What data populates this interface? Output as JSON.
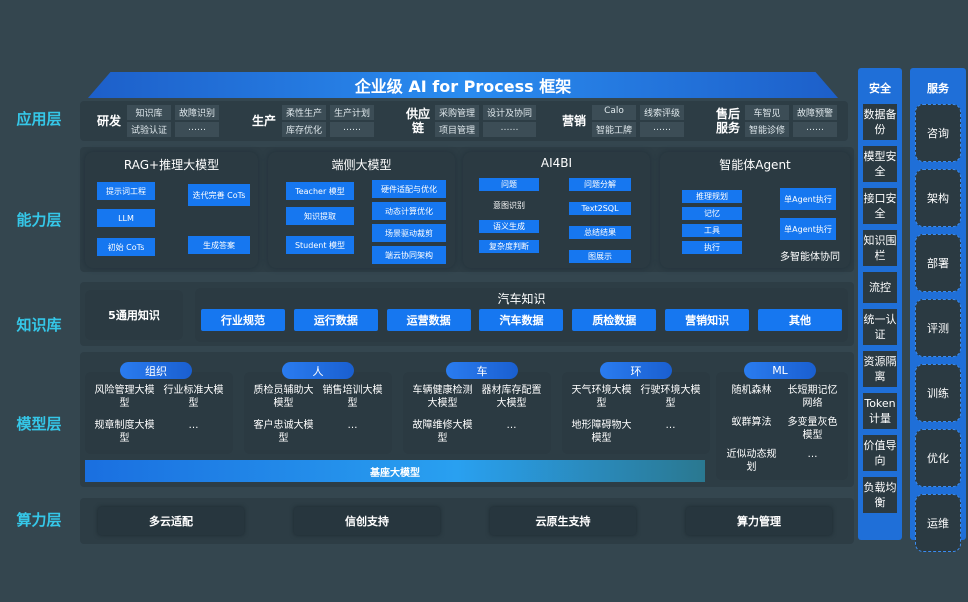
{
  "title": "企业级 AI for Process 框架",
  "layers": [
    "应用层",
    "能力层",
    "知识库",
    "模型层",
    "算力层"
  ],
  "app": [
    {
      "name": "研发",
      "items": [
        "知识库",
        "故障识别",
        "试验认证",
        "……"
      ]
    },
    {
      "name": "生产",
      "items": [
        "柔性生产",
        "生产计划",
        "库存优化",
        "……"
      ]
    },
    {
      "name": "供应链",
      "items": [
        "采购管理",
        "设计及协同",
        "项目管理",
        "……"
      ]
    },
    {
      "name": "营销",
      "items": [
        "Calo",
        "线索评级",
        "智能工牌",
        "……"
      ]
    },
    {
      "name": "售后服务",
      "items": [
        "车智见",
        "故障预警",
        "智能诊修",
        "……"
      ]
    }
  ],
  "capability": {
    "rag": {
      "title": "RAG+推理大模型",
      "left": [
        "提示词工程",
        "LLM",
        "初始 CoTs"
      ],
      "right": [
        "迭代完善 CoTs",
        "生成答案"
      ]
    },
    "edge": {
      "title": "端侧大模型",
      "left": [
        "Teacher 模型",
        "知识提取",
        "Student 模型"
      ],
      "right": [
        "硬件适配与优化",
        "动态计算优化",
        "场景驱动裁剪",
        "端云协同架构"
      ]
    },
    "ai4bi": {
      "title": "AI4BI",
      "left": [
        "问题",
        "意图识别",
        "语义生成",
        "复杂度判断"
      ],
      "right": [
        "问题分解",
        "Text2SQL",
        "总结结果",
        "图展示"
      ]
    },
    "agent": {
      "title": "智能体Agent",
      "left": [
        "推理规划",
        "记忆",
        "工具",
        "执行"
      ],
      "right": [
        "单Agent执行",
        "单Agent执行"
      ],
      "caption": "多智能体协同"
    }
  },
  "knowledge": {
    "general": "5通用知识",
    "auto_title": "汽车知识",
    "chips": [
      "行业规范",
      "运行数据",
      "运营数据",
      "汽车数据",
      "质检数据",
      "营销知识",
      "其他"
    ]
  },
  "models": [
    {
      "tag": "组织",
      "items": [
        "风险管理大模型",
        "行业标准大模型",
        "规章制度大模型",
        "…"
      ]
    },
    {
      "tag": "人",
      "items": [
        "质检员辅助大模型",
        "销售培训大模型",
        "客户忠诚大模型",
        "…"
      ]
    },
    {
      "tag": "车",
      "items": [
        "车辆健康检测大模型",
        "器材库存配置大模型",
        "故障维修大模型",
        "…"
      ]
    },
    {
      "tag": "环",
      "items": [
        "天气环境大模型",
        "行驶环境大模型",
        "地形障碍物大模型",
        "…"
      ]
    },
    {
      "tag": "ML",
      "items": [
        "随机森林",
        "长短期记忆网络",
        "蚁群算法",
        "多变量灰色模型",
        "近似动态规划",
        "…"
      ]
    }
  ],
  "base_model": "基座大模型",
  "compute": [
    "多云适配",
    "信创支持",
    "云原生支持",
    "算力管理"
  ],
  "security": {
    "title": "安全",
    "items": [
      "数据备份",
      "模型安全",
      "接口安全",
      "知识围栏",
      "流控",
      "统一认证",
      "资源隔离",
      "Token计量",
      "价值导向",
      "负载均衡"
    ]
  },
  "services": {
    "title": "服务",
    "items": [
      "咨询",
      "架构",
      "部署",
      "评测",
      "训练",
      "优化",
      "运维"
    ]
  },
  "colors": {
    "background": "#34464f",
    "accent": "#1677f0",
    "layer_label": "#35c7e8"
  }
}
